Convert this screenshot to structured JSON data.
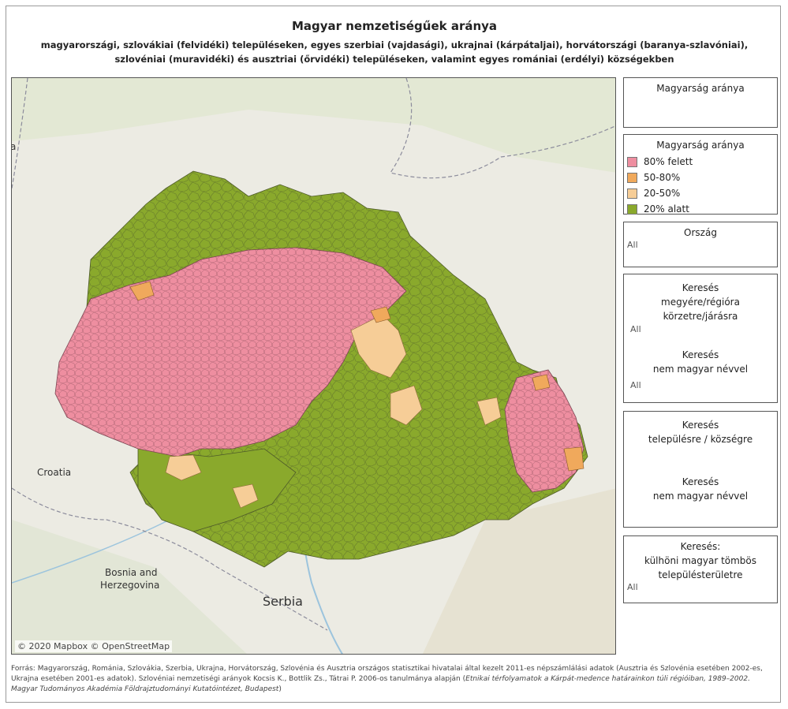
{
  "title": "Magyar nemzetiségűek aránya",
  "subtitle": "magyarországi, szlovákiai (felvidéki) településeken, egyes szerbiai (vajdasági), ukrajnai (kárpátaljai), horvátországi (baranya-szlavóniai), szlovéniai (muravidéki) és ausztriai (őrvidéki) településeken, valamint egyes romániai (erdélyi) községekben",
  "map": {
    "labels": {
      "croatia": "Croatia",
      "bosnia1": "Bosnia and",
      "bosnia2": "Herzegovina",
      "serbia": "Serbia",
      "edge_a": "a"
    },
    "attribution": "© 2020 Mapbox © OpenStreetMap",
    "colors": {
      "over80": "#ee8ea0",
      "from50to80": "#f0a95c",
      "from20to50": "#f6cd97",
      "under20": "#8aa92c",
      "background": "#ecebe3",
      "border": "#555555"
    }
  },
  "panels": {
    "ratio_filter": {
      "title": "Magyarság aránya"
    },
    "legend": {
      "title": "Magyarság aránya",
      "items": [
        {
          "label": "80% felett",
          "color": "#ee8ea0"
        },
        {
          "label": "50-80%",
          "color": "#f0a95c"
        },
        {
          "label": "20-50%",
          "color": "#f6cd97"
        },
        {
          "label": "20% alatt",
          "color": "#8aa92c"
        }
      ]
    },
    "country": {
      "title": "Ország",
      "value": "All"
    },
    "search_region": {
      "title1": "Keresés",
      "title2": "megyére/régióra",
      "title3": "körzetre/járásra",
      "value": "All",
      "title4": "Keresés",
      "title5": "nem magyar névvel",
      "value2": "All"
    },
    "search_settlement": {
      "title1": "Keresés",
      "title2": "településre / községre",
      "title3": "Keresés",
      "title4": "nem magyar névvel"
    },
    "search_block": {
      "title1": "Keresés:",
      "title2": "külhöni magyar tömbös",
      "title3": "településterületre",
      "value": "All"
    }
  },
  "footer": {
    "line1": "Forrás: Magyarország, Románia, Szlovákia, Szerbia, Ukrajna, Horvátország, Szlovénia és Ausztria országos statisztikai hivatalai által kezelt 2011-es népszámlálási adatok (Ausztria és Szlovénia esetében 2002-es, Ukrajna esetében 2001-es adatok). Szlovéniai nemzetiségi arányok Kocsis K., Bottlik Zs., Tátrai P. 2006-os tanulmánya alapján (",
    "italic": "Etnikai térfolyamatok a Kárpát-medence határainkon túli régióiban, 1989–2002. Magyar Tudományos Akadémia Földrajztudományi Kutatóintézet, Budapest",
    "end": ")"
  }
}
